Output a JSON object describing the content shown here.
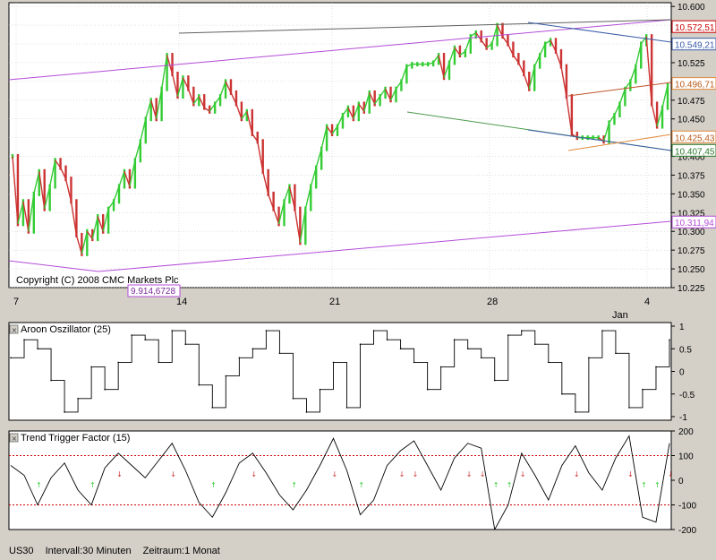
{
  "statusbar": {
    "symbol": "US30",
    "interval": "Intervall:30 Minuten",
    "range": "Zeitraum:1 Monat"
  },
  "colors": {
    "up": "#33cc33",
    "down": "#cc3333",
    "line": "#000000",
    "grid": "#cccccc",
    "trend_violet": "#b44cd8",
    "trend_blue": "#3a5ca8",
    "trend_orange": "#e08a3a",
    "trend_green": "#4a9a4a",
    "threshold": "#cc0000"
  },
  "chart_data": [
    {
      "type": "line",
      "title": "",
      "copyright": "Copyright (C) 2008 CMC Markets Plc",
      "x_tick_labels": [
        "7",
        "14",
        "21",
        "28",
        "4"
      ],
      "x_month_label": "Jan",
      "y_tick_labels": [
        "10.600",
        "10.575",
        "10.550",
        "10.525",
        "10.500",
        "10.475",
        "10.450",
        "10.425",
        "10.400",
        "10.375",
        "10.350",
        "10.325",
        "10.300",
        "10.275",
        "10.250",
        "10.225"
      ],
      "ylim": [
        10225,
        10605
      ],
      "price_tags": [
        "10.572,51",
        "10.549,21",
        "10.496,71",
        "10.425,43",
        "10.407,45",
        "10.311,94"
      ],
      "low_marker_label": "9.914,6728",
      "x": [
        0,
        6,
        12,
        18,
        24,
        30,
        36,
        42,
        48,
        54,
        60,
        66,
        72,
        78,
        84,
        90,
        96,
        102,
        108,
        114,
        120,
        126,
        132,
        138,
        144,
        150,
        156,
        162,
        168,
        174,
        180,
        186,
        192,
        198,
        204,
        210,
        216,
        222,
        228,
        234,
        240,
        246,
        252,
        258,
        264,
        270,
        276,
        282,
        288,
        294,
        300,
        306,
        312,
        318,
        324,
        330,
        336,
        342,
        348,
        354,
        360,
        366,
        372,
        378,
        384,
        390,
        396,
        402,
        408,
        414,
        420,
        426,
        432,
        438,
        444,
        450,
        456,
        462,
        468,
        474,
        480,
        486,
        492,
        498,
        504,
        510,
        516,
        522,
        528,
        534,
        540,
        546,
        552,
        558,
        564,
        570,
        576,
        582,
        588,
        594,
        600,
        606,
        612,
        618,
        624,
        630,
        636,
        642,
        648,
        654,
        660,
        666,
        672,
        678,
        684,
        690,
        696,
        702,
        708,
        714,
        720,
        726,
        732,
        738
      ],
      "close": [
        10400,
        10310,
        10340,
        10300,
        10350,
        10380,
        10330,
        10360,
        10395,
        10385,
        10370,
        10340,
        10295,
        10270,
        10300,
        10290,
        10320,
        10300,
        10330,
        10340,
        10360,
        10380,
        10360,
        10395,
        10420,
        10450,
        10475,
        10450,
        10490,
        10535,
        10510,
        10480,
        10505,
        10490,
        10470,
        10480,
        10465,
        10460,
        10470,
        10480,
        10500,
        10485,
        10470,
        10450,
        10460,
        10430,
        10420,
        10380,
        10350,
        10330,
        10310,
        10340,
        10360,
        10330,
        10285,
        10330,
        10360,
        10385,
        10410,
        10440,
        10430,
        10440,
        10455,
        10465,
        10450,
        10470,
        10460,
        10485,
        10470,
        10480,
        10490,
        10475,
        10490,
        10500,
        10520,
        10523,
        10523,
        10523,
        10523,
        10525,
        10535,
        10505,
        10525,
        10545,
        10535,
        10540,
        10560,
        10565,
        10555,
        10545,
        10550,
        10575,
        10560,
        10550,
        10535,
        10525,
        10510,
        10490,
        10520,
        10535,
        10550,
        10555,
        10540,
        10520,
        10480,
        10430,
        10425,
        10425,
        10425,
        10425,
        10425,
        10420,
        10445,
        10455,
        10470,
        10490,
        10500,
        10520,
        10550,
        10560,
        10470,
        10440,
        10465,
        10495
      ]
    },
    {
      "type": "line",
      "title": "Aroon Oszillator (25)",
      "y_tick_labels": [
        "1",
        "0.5",
        "0",
        "-0.5",
        "-1"
      ],
      "ylim": [
        -1,
        1
      ],
      "x": [
        0,
        15,
        30,
        45,
        60,
        75,
        90,
        105,
        120,
        135,
        150,
        165,
        180,
        195,
        210,
        225,
        240,
        255,
        270,
        285,
        300,
        315,
        330,
        345,
        360,
        375,
        390,
        405,
        420,
        435,
        450,
        465,
        480,
        495,
        510,
        525,
        540,
        555,
        570,
        585,
        600,
        615,
        630,
        645,
        660,
        675,
        690,
        705,
        720,
        735
      ],
      "values": [
        0.3,
        0.7,
        0.5,
        -0.2,
        -0.9,
        -0.6,
        0.1,
        -0.4,
        0.2,
        0.8,
        0.7,
        0.2,
        0.9,
        0.6,
        -0.3,
        -0.8,
        -0.1,
        0.3,
        0.5,
        0.9,
        0.4,
        -0.6,
        -0.9,
        -0.4,
        0.2,
        -0.8,
        0.6,
        0.9,
        0.7,
        0.5,
        0.2,
        -0.4,
        0.1,
        0.7,
        0.5,
        0.3,
        -0.2,
        0.8,
        0.9,
        0.6,
        0.2,
        -0.5,
        -0.9,
        0.3,
        0.9,
        0.4,
        -0.8,
        -0.4,
        0.1,
        0.7
      ]
    },
    {
      "type": "line",
      "title": "Trend Trigger Factor (15)",
      "y_tick_labels": [
        "200",
        "100",
        "0",
        "-100",
        "-200"
      ],
      "ylim": [
        -200,
        200
      ],
      "thresholds": [
        100,
        -100
      ],
      "x": [
        0,
        15,
        30,
        45,
        60,
        75,
        90,
        105,
        120,
        135,
        150,
        165,
        180,
        195,
        210,
        225,
        240,
        255,
        270,
        285,
        300,
        315,
        330,
        345,
        360,
        375,
        390,
        405,
        420,
        435,
        450,
        465,
        480,
        495,
        510,
        525,
        540,
        555,
        570,
        585,
        600,
        615,
        630,
        645,
        660,
        675,
        690,
        705,
        720,
        735
      ],
      "values": [
        60,
        20,
        -100,
        10,
        70,
        -40,
        -100,
        50,
        110,
        60,
        10,
        80,
        150,
        40,
        -90,
        -150,
        -50,
        70,
        110,
        30,
        -60,
        -120,
        -40,
        60,
        170,
        40,
        -140,
        -80,
        60,
        120,
        160,
        60,
        -40,
        90,
        150,
        130,
        -200,
        -100,
        110,
        20,
        -80,
        60,
        140,
        30,
        -40,
        90,
        180,
        -150,
        -170,
        150
      ]
    }
  ]
}
